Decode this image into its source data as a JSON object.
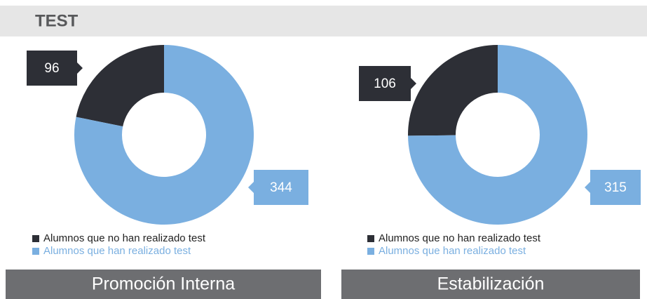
{
  "header": {
    "title": "TEST"
  },
  "chart_data": [
    {
      "type": "donut",
      "title": "Promoción Interna",
      "categories": [
        "Alumnos que no han realizado test",
        "Alumnos que han realizado test"
      ],
      "values": [
        96,
        344
      ],
      "colors": [
        "#2d2f36",
        "#7aafe0"
      ]
    },
    {
      "type": "donut",
      "title": "Estabilización",
      "categories": [
        "Alumnos que no han realizado test",
        "Alumnos que han realizado test"
      ],
      "values": [
        106,
        315
      ],
      "colors": [
        "#2d2f36",
        "#7aafe0"
      ]
    }
  ]
}
